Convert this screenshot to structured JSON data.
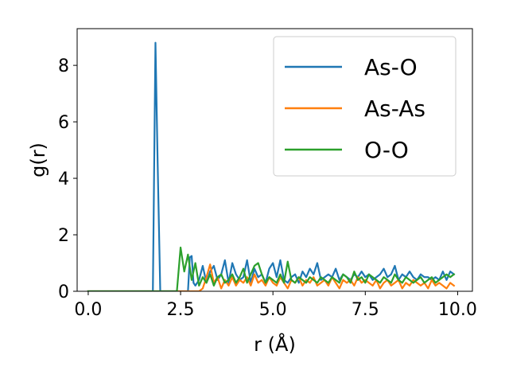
{
  "chart_data": {
    "type": "line",
    "xlabel": "r (Å)",
    "ylabel": "g(r)",
    "xlim": [
      -0.3,
      10.4
    ],
    "ylim": [
      0,
      9.3
    ],
    "xticks": [
      "0.0",
      "2.5",
      "5.0",
      "7.5",
      "10.0"
    ],
    "xtick_values": [
      0,
      2.5,
      5.0,
      7.5,
      10.0
    ],
    "yticks": [
      "0",
      "2",
      "4",
      "6",
      "8"
    ],
    "ytick_values": [
      0,
      2,
      4,
      6,
      8
    ],
    "grid": false,
    "legend_position": "top-right",
    "series": [
      {
        "name": "As-O",
        "color": "#1f77b4",
        "x": [
          0.0,
          1.5,
          1.75,
          1.82,
          1.88,
          1.95,
          2.0,
          2.7,
          2.75,
          2.8,
          2.85,
          2.9,
          3.0,
          3.1,
          3.2,
          3.3,
          3.4,
          3.5,
          3.6,
          3.7,
          3.8,
          3.9,
          4.0,
          4.1,
          4.2,
          4.3,
          4.4,
          4.5,
          4.6,
          4.7,
          4.8,
          4.9,
          5.0,
          5.1,
          5.2,
          5.3,
          5.4,
          5.5,
          5.6,
          5.7,
          5.8,
          5.9,
          6.0,
          6.1,
          6.2,
          6.3,
          6.4,
          6.5,
          6.6,
          6.7,
          6.8,
          6.9,
          7.0,
          7.1,
          7.2,
          7.3,
          7.4,
          7.5,
          7.6,
          7.7,
          7.8,
          7.9,
          8.0,
          8.1,
          8.2,
          8.3,
          8.4,
          8.5,
          8.6,
          8.7,
          8.8,
          8.9,
          9.0,
          9.1,
          9.2,
          9.3,
          9.4,
          9.5,
          9.6,
          9.7,
          9.8,
          9.9
        ],
        "y": [
          0,
          0,
          0,
          8.8,
          4.5,
          0,
          0,
          0,
          1.2,
          1.25,
          0.3,
          0.2,
          0.4,
          0.9,
          0.3,
          0.7,
          0.9,
          0.4,
          0.6,
          1.1,
          0.3,
          1.0,
          0.6,
          0.4,
          0.5,
          1.1,
          0.3,
          0.8,
          0.5,
          0.6,
          0.3,
          0.8,
          1.0,
          0.5,
          1.1,
          0.4,
          0.3,
          0.5,
          0.6,
          0.3,
          0.7,
          0.5,
          0.8,
          0.6,
          1.0,
          0.4,
          0.5,
          0.6,
          0.5,
          0.8,
          0.4,
          0.6,
          0.5,
          0.4,
          0.6,
          0.5,
          0.7,
          0.5,
          0.6,
          0.4,
          0.5,
          0.6,
          0.8,
          0.5,
          0.6,
          0.9,
          0.4,
          0.6,
          0.5,
          0.7,
          0.5,
          0.4,
          0.6,
          0.5,
          0.5,
          0.4,
          0.5,
          0.4,
          0.7,
          0.4,
          0.7,
          0.6
        ]
      },
      {
        "name": "As-As",
        "color": "#ff7f0e",
        "x": [
          0.0,
          3.0,
          3.1,
          3.2,
          3.3,
          3.4,
          3.5,
          3.6,
          3.7,
          3.8,
          3.9,
          4.0,
          4.1,
          4.2,
          4.3,
          4.4,
          4.5,
          4.6,
          4.7,
          4.8,
          4.9,
          5.0,
          5.1,
          5.2,
          5.3,
          5.4,
          5.5,
          5.6,
          5.7,
          5.8,
          5.9,
          6.0,
          6.1,
          6.2,
          6.3,
          6.4,
          6.5,
          6.6,
          6.7,
          6.8,
          6.9,
          7.0,
          7.1,
          7.2,
          7.3,
          7.4,
          7.5,
          7.6,
          7.7,
          7.8,
          7.9,
          8.0,
          8.1,
          8.2,
          8.3,
          8.4,
          8.5,
          8.6,
          8.7,
          8.8,
          8.9,
          9.0,
          9.1,
          9.2,
          9.3,
          9.4,
          9.5,
          9.6,
          9.7,
          9.8,
          9.9
        ],
        "y": [
          0,
          0,
          0.1,
          0.5,
          0.95,
          0.3,
          0.5,
          0.1,
          0.4,
          0.2,
          0.5,
          0.2,
          0.4,
          0.3,
          0.5,
          0.2,
          0.6,
          0.3,
          0.4,
          0.2,
          0.5,
          0.3,
          0.2,
          0.5,
          0.3,
          0.1,
          0.4,
          0.3,
          0.5,
          0.2,
          0.4,
          0.3,
          0.5,
          0.2,
          0.3,
          0.4,
          0.2,
          0.5,
          0.3,
          0.1,
          0.4,
          0.3,
          0.4,
          0.2,
          0.5,
          0.3,
          0.4,
          0.3,
          0.2,
          0.4,
          0.1,
          0.3,
          0.4,
          0.2,
          0.3,
          0.4,
          0.1,
          0.3,
          0.2,
          0.4,
          0.3,
          0.2,
          0.3,
          0.1,
          0.4,
          0.2,
          0.3,
          0.2,
          0.1,
          0.3,
          0.2
        ]
      },
      {
        "name": "O-O",
        "color": "#2ca02c",
        "x": [
          0.0,
          2.3,
          2.4,
          2.5,
          2.6,
          2.7,
          2.8,
          2.9,
          3.0,
          3.1,
          3.2,
          3.3,
          3.4,
          3.5,
          3.6,
          3.7,
          3.8,
          3.9,
          4.0,
          4.1,
          4.2,
          4.3,
          4.4,
          4.5,
          4.6,
          4.7,
          4.8,
          4.9,
          5.0,
          5.1,
          5.2,
          5.3,
          5.4,
          5.5,
          5.6,
          5.7,
          5.8,
          5.9,
          6.0,
          6.1,
          6.2,
          6.3,
          6.4,
          6.5,
          6.6,
          6.7,
          6.8,
          6.9,
          7.0,
          7.1,
          7.2,
          7.3,
          7.4,
          7.5,
          7.6,
          7.7,
          7.8,
          7.9,
          8.0,
          8.1,
          8.2,
          8.3,
          8.4,
          8.5,
          8.6,
          8.7,
          8.8,
          8.9,
          9.0,
          9.1,
          9.2,
          9.3,
          9.4,
          9.5,
          9.6,
          9.7,
          9.8,
          9.9
        ],
        "y": [
          0,
          0,
          0,
          1.55,
          0.7,
          1.3,
          0.4,
          1.0,
          0.2,
          0.5,
          0.3,
          0.6,
          0.2,
          0.5,
          0.6,
          0.3,
          0.4,
          0.6,
          0.3,
          0.5,
          0.8,
          0.3,
          0.6,
          0.9,
          1.0,
          0.6,
          0.3,
          0.5,
          0.4,
          0.3,
          0.6,
          0.3,
          1.05,
          0.4,
          0.3,
          0.5,
          0.4,
          0.3,
          0.5,
          0.4,
          0.3,
          0.5,
          0.4,
          0.3,
          0.5,
          0.4,
          0.3,
          0.6,
          0.5,
          0.3,
          0.7,
          0.4,
          0.5,
          0.3,
          0.6,
          0.5,
          0.4,
          0.3,
          0.5,
          0.4,
          0.3,
          0.6,
          0.4,
          0.3,
          0.5,
          0.4,
          0.3,
          0.4,
          0.5,
          0.3,
          0.4,
          0.5,
          0.3,
          0.4,
          0.5,
          0.6,
          0.5,
          0.6
        ]
      }
    ]
  }
}
